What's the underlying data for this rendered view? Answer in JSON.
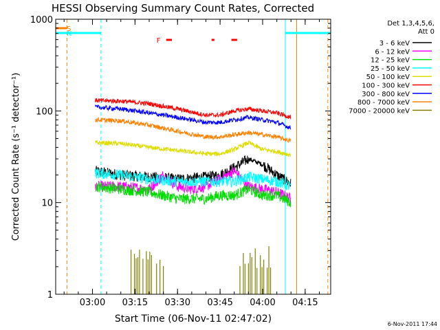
{
  "chart_data": {
    "type": "line",
    "title": "HESSI Observing Summary Count Rates, Corrected",
    "xlabel": "Start Time (06-Nov-11 02:47:02)",
    "ylabel": "Corrected Count Rate (s⁻¹ detector⁻¹)",
    "yscale": "log",
    "ylim": [
      1,
      1000
    ],
    "xlim": [
      "02:47:02",
      "04:24:00"
    ],
    "x_ticks": [
      "03:00",
      "03:15",
      "03:30",
      "03:45",
      "04:00",
      "04:15"
    ],
    "y_ticks": [
      "1",
      "10",
      "100",
      "1000"
    ],
    "legend": {
      "header": [
        "Det 1,3,4,5,6,",
        "Att 0"
      ],
      "placement": "right",
      "entries": [
        {
          "label": "3 - 6 keV",
          "color": "#000000"
        },
        {
          "label": "6 - 12 keV",
          "color": "#ff00ff"
        },
        {
          "label": "12 - 25 keV",
          "color": "#00dd00"
        },
        {
          "label": "25 - 50 keV",
          "color": "#00ffff"
        },
        {
          "label": "50 - 100 keV",
          "color": "#dddd00"
        },
        {
          "label": "100 - 300 keV",
          "color": "#ff0000"
        },
        {
          "label": "300 - 800 keV",
          "color": "#0000ff"
        },
        {
          "label": "800 - 7000 keV",
          "color": "#ff8000"
        },
        {
          "label": "7000 - 20000 keV",
          "color": "#808000"
        }
      ]
    },
    "series": [
      {
        "name": "3 - 6 keV",
        "color": "#000000",
        "x": [
          "03:01",
          "03:10",
          "03:20",
          "03:30",
          "03:40",
          "03:45",
          "03:50",
          "03:55",
          "04:00",
          "04:05",
          "04:10"
        ],
        "y": [
          22,
          20,
          19,
          18,
          19,
          20,
          24,
          30,
          26,
          20,
          16
        ]
      },
      {
        "name": "6 - 12 keV",
        "color": "#ff00ff",
        "x": [
          "03:01",
          "03:10",
          "03:20",
          "03:25",
          "03:30",
          "03:35",
          "03:40",
          "03:45",
          "03:50",
          "03:55",
          "04:00",
          "04:05",
          "04:10"
        ],
        "y": [
          15,
          15,
          14,
          20,
          15,
          14,
          15,
          18,
          22,
          15,
          14,
          13,
          11
        ]
      },
      {
        "name": "12 - 25 keV",
        "color": "#00dd00",
        "x": [
          "03:01",
          "03:10",
          "03:20",
          "03:30",
          "03:40",
          "03:45",
          "03:50",
          "03:55",
          "04:00",
          "04:05",
          "04:10"
        ],
        "y": [
          15,
          14,
          13,
          11,
          11,
          12,
          12,
          14,
          12,
          12,
          10
        ]
      },
      {
        "name": "25 - 50 keV",
        "color": "#00ffff",
        "x": [
          "03:01",
          "03:10",
          "03:20",
          "03:30",
          "03:40",
          "03:45",
          "03:50",
          "03:55",
          "04:00",
          "04:05",
          "04:10"
        ],
        "y": [
          21,
          20,
          18,
          17,
          17,
          17,
          17,
          19,
          18,
          17,
          15
        ]
      },
      {
        "name": "50 - 100 keV",
        "color": "#dddd00",
        "x": [
          "03:01",
          "03:10",
          "03:20",
          "03:30",
          "03:40",
          "03:45",
          "03:50",
          "03:55",
          "04:00",
          "04:05",
          "04:10"
        ],
        "y": [
          45,
          44,
          40,
          37,
          34,
          34,
          38,
          45,
          38,
          36,
          33
        ]
      },
      {
        "name": "100 - 300 keV",
        "color": "#ff0000",
        "x": [
          "03:01",
          "03:10",
          "03:20",
          "03:30",
          "03:40",
          "03:45",
          "03:50",
          "03:55",
          "04:00",
          "04:05",
          "04:10"
        ],
        "y": [
          130,
          128,
          120,
          105,
          90,
          90,
          100,
          105,
          100,
          95,
          85
        ]
      },
      {
        "name": "300 - 800 keV",
        "color": "#0000ff",
        "x": [
          "03:01",
          "03:10",
          "03:20",
          "03:30",
          "03:40",
          "03:45",
          "03:50",
          "03:55",
          "04:00",
          "04:05",
          "04:10"
        ],
        "y": [
          110,
          105,
          95,
          85,
          75,
          75,
          80,
          85,
          80,
          75,
          65
        ]
      },
      {
        "name": "800 - 7000 keV",
        "color": "#ff8000",
        "x": [
          "03:01",
          "03:10",
          "03:20",
          "03:30",
          "03:40",
          "03:45",
          "03:50",
          "03:55",
          "04:00",
          "04:05",
          "04:10"
        ],
        "y": [
          80,
          78,
          70,
          60,
          52,
          52,
          55,
          58,
          55,
          52,
          47
        ]
      }
    ],
    "particle_bursts": [
      {
        "name": "7000 - 20000 keV",
        "color": "#808000",
        "ranges": [
          [
            "03:13",
            "03:25"
          ],
          [
            "03:52",
            "04:03"
          ]
        ]
      }
    ],
    "flags": [
      {
        "label": "S",
        "color": "#ff8000",
        "ranges": [
          [
            "02:47:02",
            "02:51"
          ]
        ]
      },
      {
        "label": "N",
        "color": "#00ffff",
        "ranges": [
          [
            "02:47:02",
            "03:03"
          ],
          [
            "04:08",
            "04:24"
          ]
        ]
      },
      {
        "label": "F",
        "color": "#ff0000",
        "ranges": [
          [
            "03:26",
            "03:28"
          ],
          [
            "03:42",
            "03:43"
          ],
          [
            "03:49",
            "03:51"
          ]
        ]
      }
    ],
    "markers": [
      {
        "time": "02:47:02",
        "color": "#00ffff",
        "style": "solid"
      },
      {
        "time": "02:51",
        "color": "#ff8000",
        "style": "dashed"
      },
      {
        "time": "03:03",
        "color": "#00ffff",
        "style": "dashed"
      },
      {
        "time": "04:08",
        "color": "#00ffff",
        "style": "solid"
      },
      {
        "time": "04:12",
        "color": "#ff8000",
        "style": "solid"
      },
      {
        "time": "04:23",
        "color": "#ff8000",
        "style": "dashed"
      }
    ],
    "footer_date": "6-Nov-2011 17:44"
  }
}
